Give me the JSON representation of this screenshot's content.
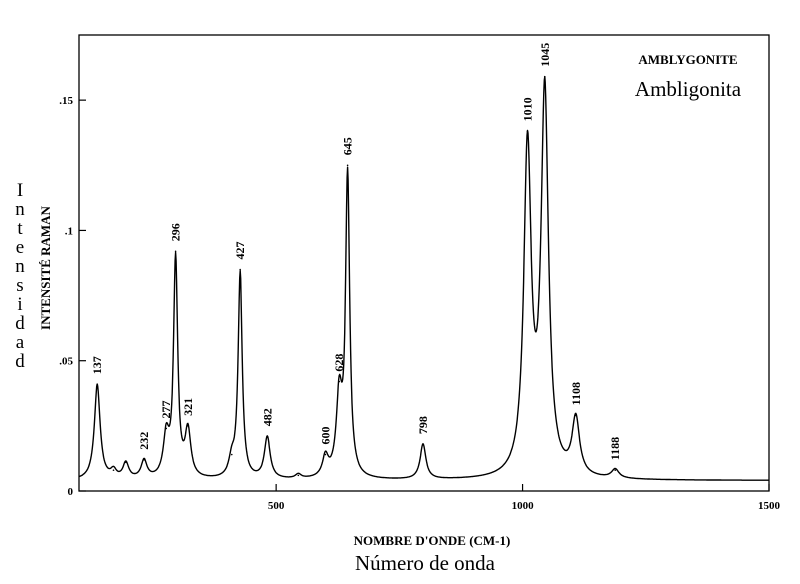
{
  "chart_data": {
    "type": "line",
    "title": "AMBLYGONITE",
    "subtitle": "Ambligonita",
    "xlabel": "NOMBRE D'ONDE (CM-1)",
    "xlabel_secondary": "Número de onda",
    "ylabel": "INTENSITÉ RAMAN",
    "ylabel_secondary": "Intensidad",
    "xlim": [
      100,
      1500
    ],
    "ylim": [
      0,
      0.175
    ],
    "x_ticks": [
      500,
      1000,
      1500
    ],
    "x_tick_labels": [
      "500",
      "1000",
      "1500"
    ],
    "y_ticks": [
      0,
      0.05,
      0.1,
      0.15
    ],
    "y_tick_labels": [
      "0",
      ".05",
      ".1",
      ".15"
    ],
    "grid": false,
    "baseline": 0.004,
    "peaks": [
      {
        "x": 137,
        "y": 0.041,
        "label": "137"
      },
      {
        "x": 170,
        "y": 0.008,
        "label": ""
      },
      {
        "x": 195,
        "y": 0.011,
        "label": ""
      },
      {
        "x": 232,
        "y": 0.012,
        "label": "232"
      },
      {
        "x": 277,
        "y": 0.024,
        "label": "277"
      },
      {
        "x": 296,
        "y": 0.092,
        "label": "296"
      },
      {
        "x": 321,
        "y": 0.025,
        "label": "321"
      },
      {
        "x": 410,
        "y": 0.014,
        "label": ""
      },
      {
        "x": 427,
        "y": 0.085,
        "label": "427"
      },
      {
        "x": 482,
        "y": 0.021,
        "label": "482"
      },
      {
        "x": 545,
        "y": 0.006,
        "label": ""
      },
      {
        "x": 600,
        "y": 0.014,
        "label": "600"
      },
      {
        "x": 628,
        "y": 0.042,
        "label": "628"
      },
      {
        "x": 645,
        "y": 0.125,
        "label": "645"
      },
      {
        "x": 798,
        "y": 0.018,
        "label": "798"
      },
      {
        "x": 1010,
        "y": 0.138,
        "label": "1010"
      },
      {
        "x": 1045,
        "y": 0.159,
        "label": "1045"
      },
      {
        "x": 1108,
        "y": 0.029,
        "label": "1108"
      },
      {
        "x": 1188,
        "y": 0.008,
        "label": "1188"
      }
    ]
  }
}
